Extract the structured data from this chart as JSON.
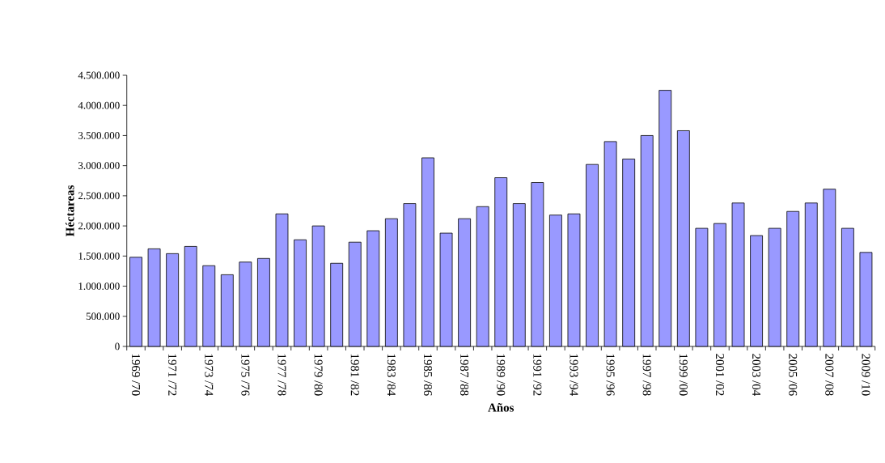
{
  "chart_data": {
    "type": "bar",
    "xlabel": "Años",
    "ylabel": "Héctareas",
    "categories": [
      "1969 /70",
      null,
      "1971 /72",
      null,
      "1973 /74",
      null,
      "1975 /76",
      null,
      "1977 /78",
      null,
      "1979 /80",
      null,
      "1981 /82",
      null,
      "1983 /84",
      null,
      "1985 /86",
      null,
      "1987 /88",
      null,
      "1989 /90",
      null,
      "1991 /92",
      null,
      "1993 /94",
      null,
      "1995 /96",
      null,
      "1997 /98",
      null,
      "1999 /00",
      null,
      "2001 /02",
      null,
      "2003 /04",
      null,
      "2005 /06",
      null,
      "2007 /08",
      null,
      "2009 /10"
    ],
    "values": [
      1480000,
      1620000,
      1540000,
      1660000,
      1340000,
      1190000,
      1400000,
      1460000,
      2200000,
      1770000,
      2000000,
      1380000,
      1730000,
      1920000,
      2120000,
      2370000,
      3130000,
      1880000,
      2120000,
      2320000,
      2800000,
      2370000,
      2720000,
      2180000,
      2200000,
      3020000,
      3400000,
      3110000,
      3500000,
      4250000,
      3580000,
      1960000,
      2040000,
      2380000,
      1840000,
      1960000,
      2240000,
      2380000,
      2610000,
      1960000,
      1560000
    ],
    "color": "#9999ff",
    "ylim": [
      0,
      4500000
    ],
    "yticks": [
      {
        "value": 0,
        "label": "0"
      },
      {
        "value": 500000,
        "label": "500.000"
      },
      {
        "value": 1000000,
        "label": "1.000.000"
      },
      {
        "value": 1500000,
        "label": "1.500.000"
      },
      {
        "value": 2000000,
        "label": "2.000.000"
      },
      {
        "value": 2500000,
        "label": "2.500.000"
      },
      {
        "value": 3000000,
        "label": "3.000.000"
      },
      {
        "value": 3500000,
        "label": "3.500.000"
      },
      {
        "value": 4000000,
        "label": "4.000.000"
      },
      {
        "value": 4500000,
        "label": "4.500.000"
      }
    ],
    "grid": false
  }
}
